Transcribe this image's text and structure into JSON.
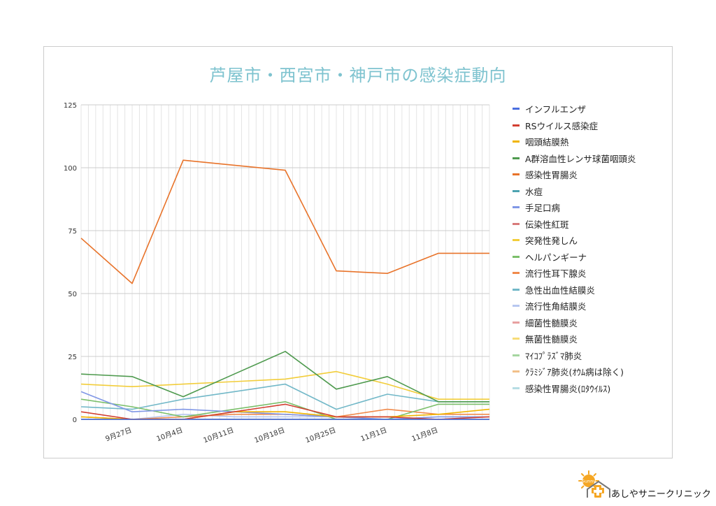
{
  "chart_data": {
    "type": "line",
    "title": "芦屋市・西宮市・神戸市の感染症動向",
    "xlabel": "",
    "ylabel": "",
    "ylim": [
      0,
      125
    ],
    "yticks": [
      0,
      25,
      50,
      75,
      100,
      125
    ],
    "grid": true,
    "legend_position": "right",
    "xrange": [
      "2021-09-20",
      "2021-11-15"
    ],
    "x": [
      "2021-09-20",
      "2021-09-27",
      "2021-10-04",
      "2021-10-11",
      "2021-10-18",
      "2021-10-25",
      "2021-11-01",
      "2021-11-08",
      "2021-11-15"
    ],
    "x_tick_labels": [
      {
        "date": "2021-09-27",
        "label": "9月27日"
      },
      {
        "date": "2021-10-04",
        "label": "10月4日"
      },
      {
        "date": "2021-10-11",
        "label": "10月11日"
      },
      {
        "date": "2021-10-18",
        "label": "10月18日"
      },
      {
        "date": "2021-10-25",
        "label": "10月25日"
      },
      {
        "date": "2021-11-01",
        "label": "11月1日"
      },
      {
        "date": "2021-11-08",
        "label": "11月8日"
      }
    ],
    "series": [
      {
        "name": "インフルエンザ",
        "color": "#4a6ee0",
        "values": [
          0,
          0,
          0,
          0,
          0,
          0,
          0,
          0,
          0
        ]
      },
      {
        "name": "RSウイルス感染症",
        "color": "#d23f31",
        "values": [
          3,
          0,
          0,
          3,
          6,
          1,
          1,
          0,
          1
        ]
      },
      {
        "name": "咽頭結膜熱",
        "color": "#f0b400",
        "values": [
          1,
          0,
          0,
          3,
          3,
          1,
          1,
          2,
          4
        ]
      },
      {
        "name": "A群溶血性レンサ球菌咽頭炎",
        "color": "#4e9a4e",
        "values": [
          18,
          17,
          9,
          18,
          27,
          12,
          17,
          7,
          7
        ]
      },
      {
        "name": "感染性胃腸炎",
        "color": "#e8732a",
        "values": [
          72,
          54,
          103,
          101,
          99,
          59,
          58,
          66,
          66
        ]
      },
      {
        "name": "水痘",
        "color": "#4da3b0",
        "values": [
          0,
          0,
          0,
          0,
          0,
          0,
          0,
          0,
          0
        ]
      },
      {
        "name": "手足口病",
        "color": "#8097e6",
        "values": [
          11,
          3,
          4,
          3,
          2,
          1,
          0,
          1,
          1
        ]
      },
      {
        "name": "伝染性紅斑",
        "color": "#d87a7a",
        "values": [
          0,
          0,
          0,
          0,
          0,
          0,
          0,
          0,
          0
        ]
      },
      {
        "name": "突発性発しん",
        "color": "#f2cd3a",
        "values": [
          14,
          13,
          14,
          15,
          16,
          19,
          14,
          8,
          8
        ]
      },
      {
        "name": "ヘルパンギーナ",
        "color": "#7bbf6a",
        "values": [
          8,
          5,
          1,
          4,
          7,
          0,
          0,
          6,
          6
        ]
      },
      {
        "name": "流行性耳下腺炎",
        "color": "#f08a4b",
        "values": [
          1,
          0,
          1,
          2,
          2,
          1,
          4,
          2,
          2
        ]
      },
      {
        "name": "急性出血性結膜炎",
        "color": "#72b8c8",
        "values": [
          5,
          4,
          8,
          11,
          14,
          4,
          10,
          7,
          7
        ]
      },
      {
        "name": "流行性角結膜炎",
        "color": "#b7c7f0",
        "values": [
          0,
          0,
          2,
          1,
          1,
          1,
          1,
          0,
          0
        ]
      },
      {
        "name": "細菌性髄膜炎",
        "color": "#e8a0a0",
        "values": [
          0,
          0,
          0,
          0,
          0,
          0,
          0,
          0,
          0
        ]
      },
      {
        "name": "無菌性髄膜炎",
        "color": "#f7dc78",
        "values": [
          0,
          0,
          0,
          0,
          0,
          0,
          0,
          0,
          0
        ]
      },
      {
        "name": "ﾏｲｺﾌﾟﾗｽﾞﾏ肺炎",
        "color": "#a5d6a0",
        "values": [
          0,
          0,
          0,
          0,
          0,
          0,
          0,
          0,
          0
        ]
      },
      {
        "name": "ｸﾗﾐｼﾞｱ肺炎(ｵｳﾑ病は除く)",
        "color": "#f2c08a",
        "values": [
          0,
          0,
          0,
          0,
          0,
          0,
          0,
          0,
          0
        ]
      },
      {
        "name": "感染性胃腸炎(ﾛﾀｳｲﾙｽ)",
        "color": "#b6dde4",
        "values": [
          0,
          0,
          0,
          0,
          0,
          0,
          0,
          0,
          0
        ]
      }
    ]
  },
  "logo": {
    "text": "あしやサニークリニック",
    "badge_text": "Sunny",
    "sun_color": "#f5a623",
    "cross_color": "#f5a623"
  }
}
